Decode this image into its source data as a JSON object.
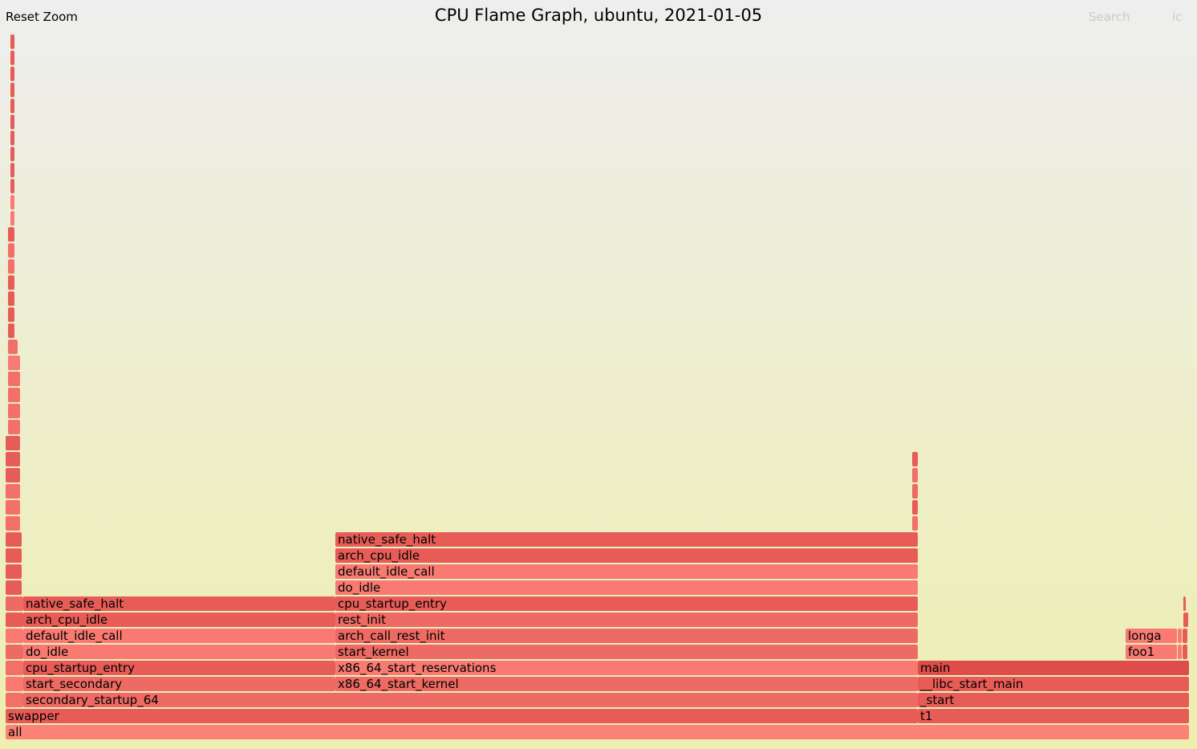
{
  "header": {
    "reset_zoom": "Reset Zoom",
    "title": "CPU Flame Graph, ubuntu, 2021-01-05",
    "search": "Search",
    "ic": "ic"
  },
  "palette": {
    "frame_colors": [
      "#f87a73",
      "#e85c58",
      "#f27068",
      "#ee6a64",
      "#fa8276",
      "#de4d4c"
    ],
    "label_color": "#000000"
  },
  "flamegraph": {
    "frames": [
      {
        "name": "all",
        "depth": 0,
        "start": 0,
        "width": 1475,
        "color": 4
      },
      {
        "name": "swapper",
        "depth": 1,
        "start": 0,
        "width": 1137,
        "color": 1
      },
      {
        "name": "t1",
        "depth": 1,
        "start": 1137,
        "width": 338,
        "color": 1
      },
      {
        "name": "",
        "depth": 2,
        "start": 0,
        "width": 22,
        "color": 2
      },
      {
        "name": "secondary_startup_64",
        "depth": 2,
        "start": 22,
        "width": 1115,
        "color": 3
      },
      {
        "name": "_start",
        "depth": 2,
        "start": 1137,
        "width": 338,
        "color": 1
      },
      {
        "name": "",
        "depth": 3,
        "start": 0,
        "width": 22,
        "color": 0
      },
      {
        "name": "start_secondary",
        "depth": 3,
        "start": 22,
        "width": 389,
        "color": 3
      },
      {
        "name": "x86_64_start_kernel",
        "depth": 3,
        "start": 411,
        "width": 726,
        "color": 3
      },
      {
        "name": "__libc_start_main",
        "depth": 3,
        "start": 1137,
        "width": 338,
        "color": 1
      },
      {
        "name": "",
        "depth": 4,
        "start": 0,
        "width": 22,
        "color": 2
      },
      {
        "name": "cpu_startup_entry",
        "depth": 4,
        "start": 22,
        "width": 389,
        "color": 1
      },
      {
        "name": "x86_64_start_reservations",
        "depth": 4,
        "start": 411,
        "width": 726,
        "color": 0
      },
      {
        "name": "main",
        "depth": 4,
        "start": 1137,
        "width": 338,
        "color": 5
      },
      {
        "name": "",
        "depth": 5,
        "start": 0,
        "width": 22,
        "color": 3
      },
      {
        "name": "do_idle",
        "depth": 5,
        "start": 22,
        "width": 389,
        "color": 0
      },
      {
        "name": "start_kernel",
        "depth": 5,
        "start": 411,
        "width": 726,
        "color": 3
      },
      {
        "name": "foo1",
        "depth": 5,
        "start": 1396,
        "width": 64,
        "color": 0
      },
      {
        "name": "",
        "depth": 5,
        "start": 1461,
        "width": 5,
        "color": 0
      },
      {
        "name": "",
        "depth": 5,
        "start": 1467,
        "width": 6,
        "color": 1
      },
      {
        "name": "",
        "depth": 6,
        "start": 0,
        "width": 22,
        "color": 0
      },
      {
        "name": "default_idle_call",
        "depth": 6,
        "start": 22,
        "width": 389,
        "color": 0
      },
      {
        "name": "arch_call_rest_init",
        "depth": 6,
        "start": 411,
        "width": 726,
        "color": 3
      },
      {
        "name": "longa",
        "depth": 6,
        "start": 1396,
        "width": 64,
        "color": 0
      },
      {
        "name": "",
        "depth": 6,
        "start": 1461,
        "width": 5,
        "color": 0
      },
      {
        "name": "",
        "depth": 6,
        "start": 1467,
        "width": 6,
        "color": 1
      },
      {
        "name": "",
        "depth": 7,
        "start": 0,
        "width": 22,
        "color": 1
      },
      {
        "name": "arch_cpu_idle",
        "depth": 7,
        "start": 22,
        "width": 389,
        "color": 1
      },
      {
        "name": "rest_init",
        "depth": 7,
        "start": 411,
        "width": 726,
        "color": 3
      },
      {
        "name": "",
        "depth": 7,
        "start": 1468,
        "width": 6,
        "color": 1
      },
      {
        "name": "",
        "depth": 8,
        "start": 0,
        "width": 22,
        "color": 3
      },
      {
        "name": "native_safe_halt",
        "depth": 8,
        "start": 22,
        "width": 389,
        "color": 1
      },
      {
        "name": "cpu_startup_entry",
        "depth": 8,
        "start": 411,
        "width": 726,
        "color": 1
      },
      {
        "name": "",
        "depth": 8,
        "start": 1468,
        "width": 3,
        "color": 1
      },
      {
        "name": "",
        "depth": 9,
        "start": 0,
        "width": 20,
        "color": 1
      },
      {
        "name": "do_idle",
        "depth": 9,
        "start": 411,
        "width": 726,
        "color": 0
      },
      {
        "name": "",
        "depth": 10,
        "start": 0,
        "width": 20,
        "color": 1
      },
      {
        "name": "default_idle_call",
        "depth": 10,
        "start": 411,
        "width": 726,
        "color": 0
      },
      {
        "name": "",
        "depth": 11,
        "start": 0,
        "width": 20,
        "color": 1
      },
      {
        "name": "arch_cpu_idle",
        "depth": 11,
        "start": 411,
        "width": 726,
        "color": 1
      },
      {
        "name": "",
        "depth": 12,
        "start": 0,
        "width": 20,
        "color": 1
      },
      {
        "name": "native_safe_halt",
        "depth": 12,
        "start": 411,
        "width": 726,
        "color": 1
      },
      {
        "name": "",
        "depth": 13,
        "start": 0,
        "width": 18,
        "color": 2
      },
      {
        "name": "",
        "depth": 13,
        "start": 1130,
        "width": 7,
        "color": 2
      },
      {
        "name": "",
        "depth": 14,
        "start": 0,
        "width": 18,
        "color": 2
      },
      {
        "name": "",
        "depth": 14,
        "start": 1130,
        "width": 7,
        "color": 1
      },
      {
        "name": "",
        "depth": 15,
        "start": 0,
        "width": 18,
        "color": 2
      },
      {
        "name": "",
        "depth": 15,
        "start": 1130,
        "width": 7,
        "color": 3
      },
      {
        "name": "",
        "depth": 16,
        "start": 0,
        "width": 18,
        "color": 1
      },
      {
        "name": "",
        "depth": 16,
        "start": 1130,
        "width": 7,
        "color": 2
      },
      {
        "name": "",
        "depth": 17,
        "start": 0,
        "width": 18,
        "color": 1
      },
      {
        "name": "",
        "depth": 17,
        "start": 1130,
        "width": 7,
        "color": 1
      },
      {
        "name": "",
        "depth": 18,
        "start": 0,
        "width": 18,
        "color": 1
      },
      {
        "name": "",
        "depth": 19,
        "start": 3,
        "width": 15,
        "color": 2
      },
      {
        "name": "",
        "depth": 20,
        "start": 3,
        "width": 15,
        "color": 2
      },
      {
        "name": "",
        "depth": 21,
        "start": 3,
        "width": 15,
        "color": 2
      },
      {
        "name": "",
        "depth": 22,
        "start": 3,
        "width": 15,
        "color": 2
      },
      {
        "name": "",
        "depth": 23,
        "start": 3,
        "width": 15,
        "color": 0
      },
      {
        "name": "",
        "depth": 24,
        "start": 3,
        "width": 12,
        "color": 2
      },
      {
        "name": "",
        "depth": 25,
        "start": 3,
        "width": 8,
        "color": 1
      },
      {
        "name": "",
        "depth": 26,
        "start": 3,
        "width": 8,
        "color": 1
      },
      {
        "name": "",
        "depth": 27,
        "start": 3,
        "width": 8,
        "color": 1
      },
      {
        "name": "",
        "depth": 28,
        "start": 3,
        "width": 8,
        "color": 1
      },
      {
        "name": "",
        "depth": 29,
        "start": 3,
        "width": 8,
        "color": 2
      },
      {
        "name": "",
        "depth": 30,
        "start": 3,
        "width": 8,
        "color": 2
      },
      {
        "name": "",
        "depth": 31,
        "start": 3,
        "width": 8,
        "color": 1
      },
      {
        "name": "",
        "depth": 32,
        "start": 6,
        "width": 5,
        "color": 0
      },
      {
        "name": "",
        "depth": 33,
        "start": 6,
        "width": 5,
        "color": 0
      },
      {
        "name": "",
        "depth": 34,
        "start": 6,
        "width": 5,
        "color": 1
      },
      {
        "name": "",
        "depth": 35,
        "start": 6,
        "width": 5,
        "color": 1
      },
      {
        "name": "",
        "depth": 36,
        "start": 6,
        "width": 5,
        "color": 1
      },
      {
        "name": "",
        "depth": 37,
        "start": 6,
        "width": 5,
        "color": 1
      },
      {
        "name": "",
        "depth": 38,
        "start": 6,
        "width": 5,
        "color": 1
      },
      {
        "name": "",
        "depth": 39,
        "start": 6,
        "width": 5,
        "color": 1
      },
      {
        "name": "",
        "depth": 40,
        "start": 6,
        "width": 5,
        "color": 1
      },
      {
        "name": "",
        "depth": 41,
        "start": 6,
        "width": 5,
        "color": 1
      },
      {
        "name": "",
        "depth": 42,
        "start": 6,
        "width": 5,
        "color": 1
      },
      {
        "name": "",
        "depth": 43,
        "start": 6,
        "width": 5,
        "color": 1
      }
    ]
  }
}
